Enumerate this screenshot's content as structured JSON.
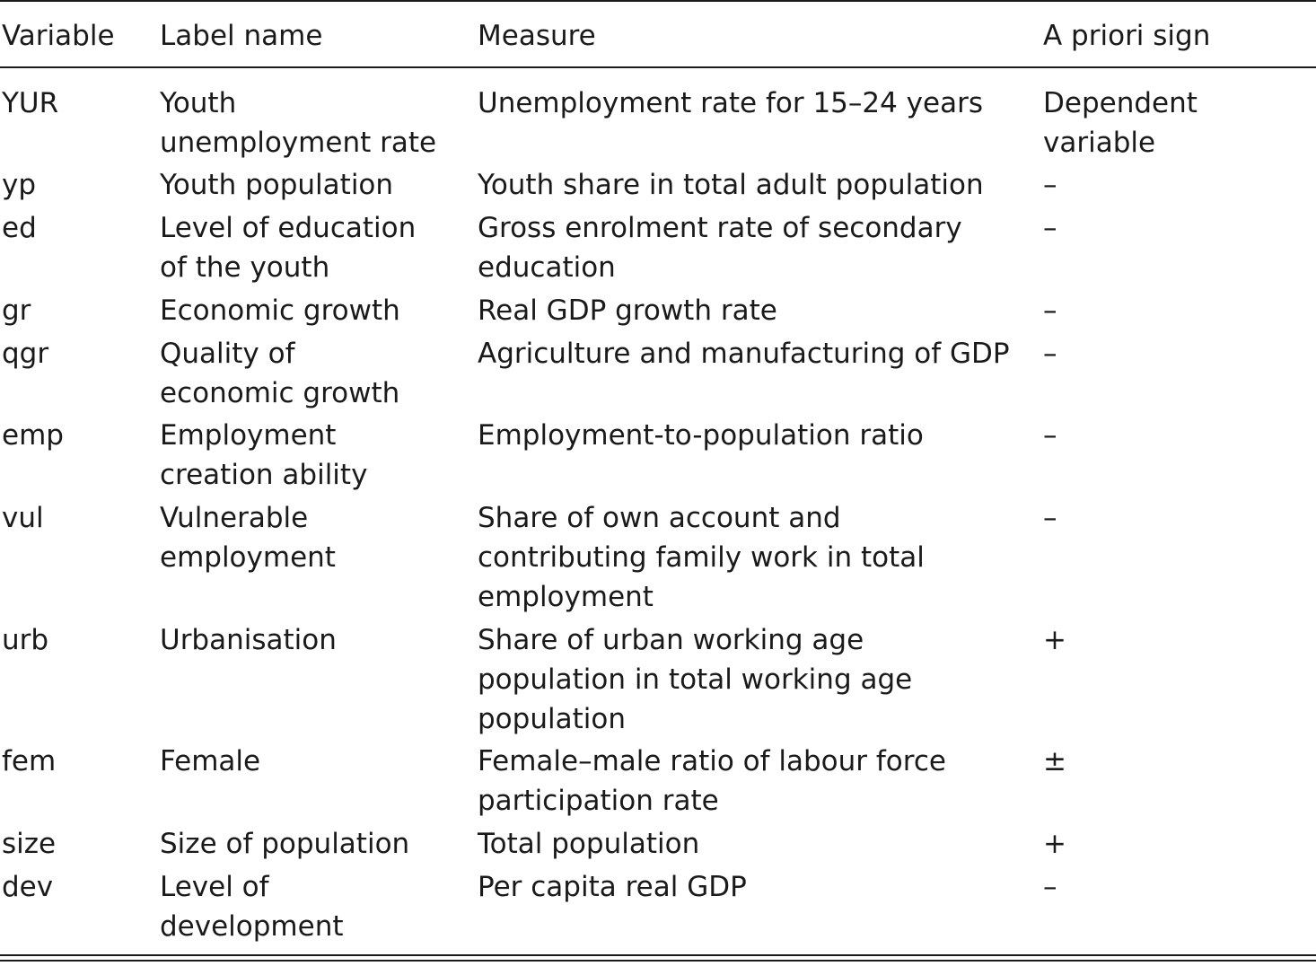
{
  "table": {
    "headers": [
      "Variable",
      "Label name",
      "Measure",
      "A priori sign"
    ],
    "rows": [
      {
        "variable": "YUR",
        "label": "Youth unemployment rate",
        "measure": "Unemployment rate for 15–24 years",
        "sign": "Dependent variable"
      },
      {
        "variable": "yp",
        "label": "Youth population",
        "measure": "Youth share in total adult population",
        "sign": "–"
      },
      {
        "variable": "ed",
        "label": "Level of education of the youth",
        "measure": "Gross enrolment rate of secondary education",
        "sign": "–"
      },
      {
        "variable": "gr",
        "label": "Economic growth",
        "measure": "Real GDP growth rate",
        "sign": "–"
      },
      {
        "variable": "qgr",
        "label": "Quality of economic growth",
        "measure": "Agriculture and manufacturing of GDP",
        "sign": "–"
      },
      {
        "variable": "emp",
        "label": "Employment creation ability",
        "measure": "Employment-to-population ratio",
        "sign": "–"
      },
      {
        "variable": "vul",
        "label": "Vulnerable employment",
        "measure": "Share of own account and contributing family work in total employment",
        "sign": "–"
      },
      {
        "variable": "urb",
        "label": "Urbanisation",
        "measure": "Share of urban working age population in total working age population",
        "sign": "+"
      },
      {
        "variable": "fem",
        "label": "Female",
        "measure": "Female–male ratio of labour force participation rate",
        "sign": "±"
      },
      {
        "variable": "size",
        "label": "Size of population",
        "measure": "Total population",
        "sign": "+"
      },
      {
        "variable": "dev",
        "label": "Level of development",
        "measure": "Per capita real GDP",
        "sign": "–"
      }
    ]
  }
}
